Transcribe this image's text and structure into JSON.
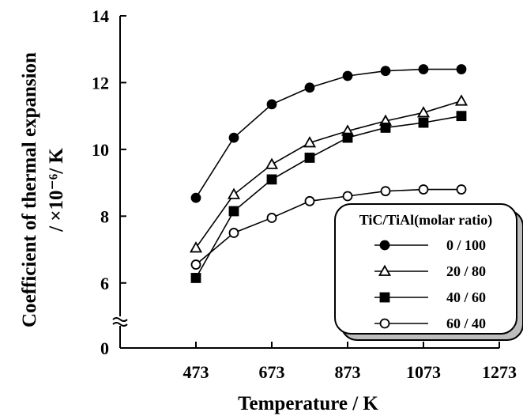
{
  "chart_data": {
    "type": "line",
    "xlabel": "Temperature / K",
    "ylabel_line1": "Coefficient of thermal expansion",
    "ylabel_line2": "/ ×10⁻⁶/ K",
    "x_ticks": [
      "473",
      "673",
      "873",
      "1073",
      "1273"
    ],
    "y_ticks": [
      "0",
      "6",
      "8",
      "10",
      "12",
      "14"
    ],
    "xlim": [
      273,
      1273
    ],
    "ylim": [
      5,
      14
    ],
    "y_axis_break": true,
    "grid": false,
    "legend": {
      "title": "TiC/TiAl(molar ratio)",
      "placement": "bottom-right"
    },
    "series": [
      {
        "name": "0 / 100",
        "marker": "filled-circle",
        "x": [
          473,
          573,
          673,
          773,
          873,
          973,
          1073,
          1173
        ],
        "y": [
          8.55,
          10.35,
          11.35,
          11.85,
          12.2,
          12.35,
          12.4,
          12.4
        ]
      },
      {
        "name": "20 / 80",
        "marker": "open-triangle",
        "x": [
          473,
          573,
          673,
          773,
          873,
          973,
          1073,
          1173
        ],
        "y": [
          7.05,
          8.65,
          9.55,
          10.2,
          10.55,
          10.85,
          11.1,
          11.45
        ]
      },
      {
        "name": "40 / 60",
        "marker": "filled-square",
        "x": [
          473,
          573,
          673,
          773,
          873,
          973,
          1073,
          1173
        ],
        "y": [
          6.15,
          8.15,
          9.1,
          9.75,
          10.35,
          10.65,
          10.8,
          11.0
        ]
      },
      {
        "name": "60 / 40",
        "marker": "open-circle",
        "x": [
          473,
          573,
          673,
          773,
          873,
          973,
          1073,
          1173
        ],
        "y": [
          6.55,
          7.5,
          7.95,
          8.45,
          8.6,
          8.75,
          8.8,
          8.8
        ]
      }
    ]
  }
}
